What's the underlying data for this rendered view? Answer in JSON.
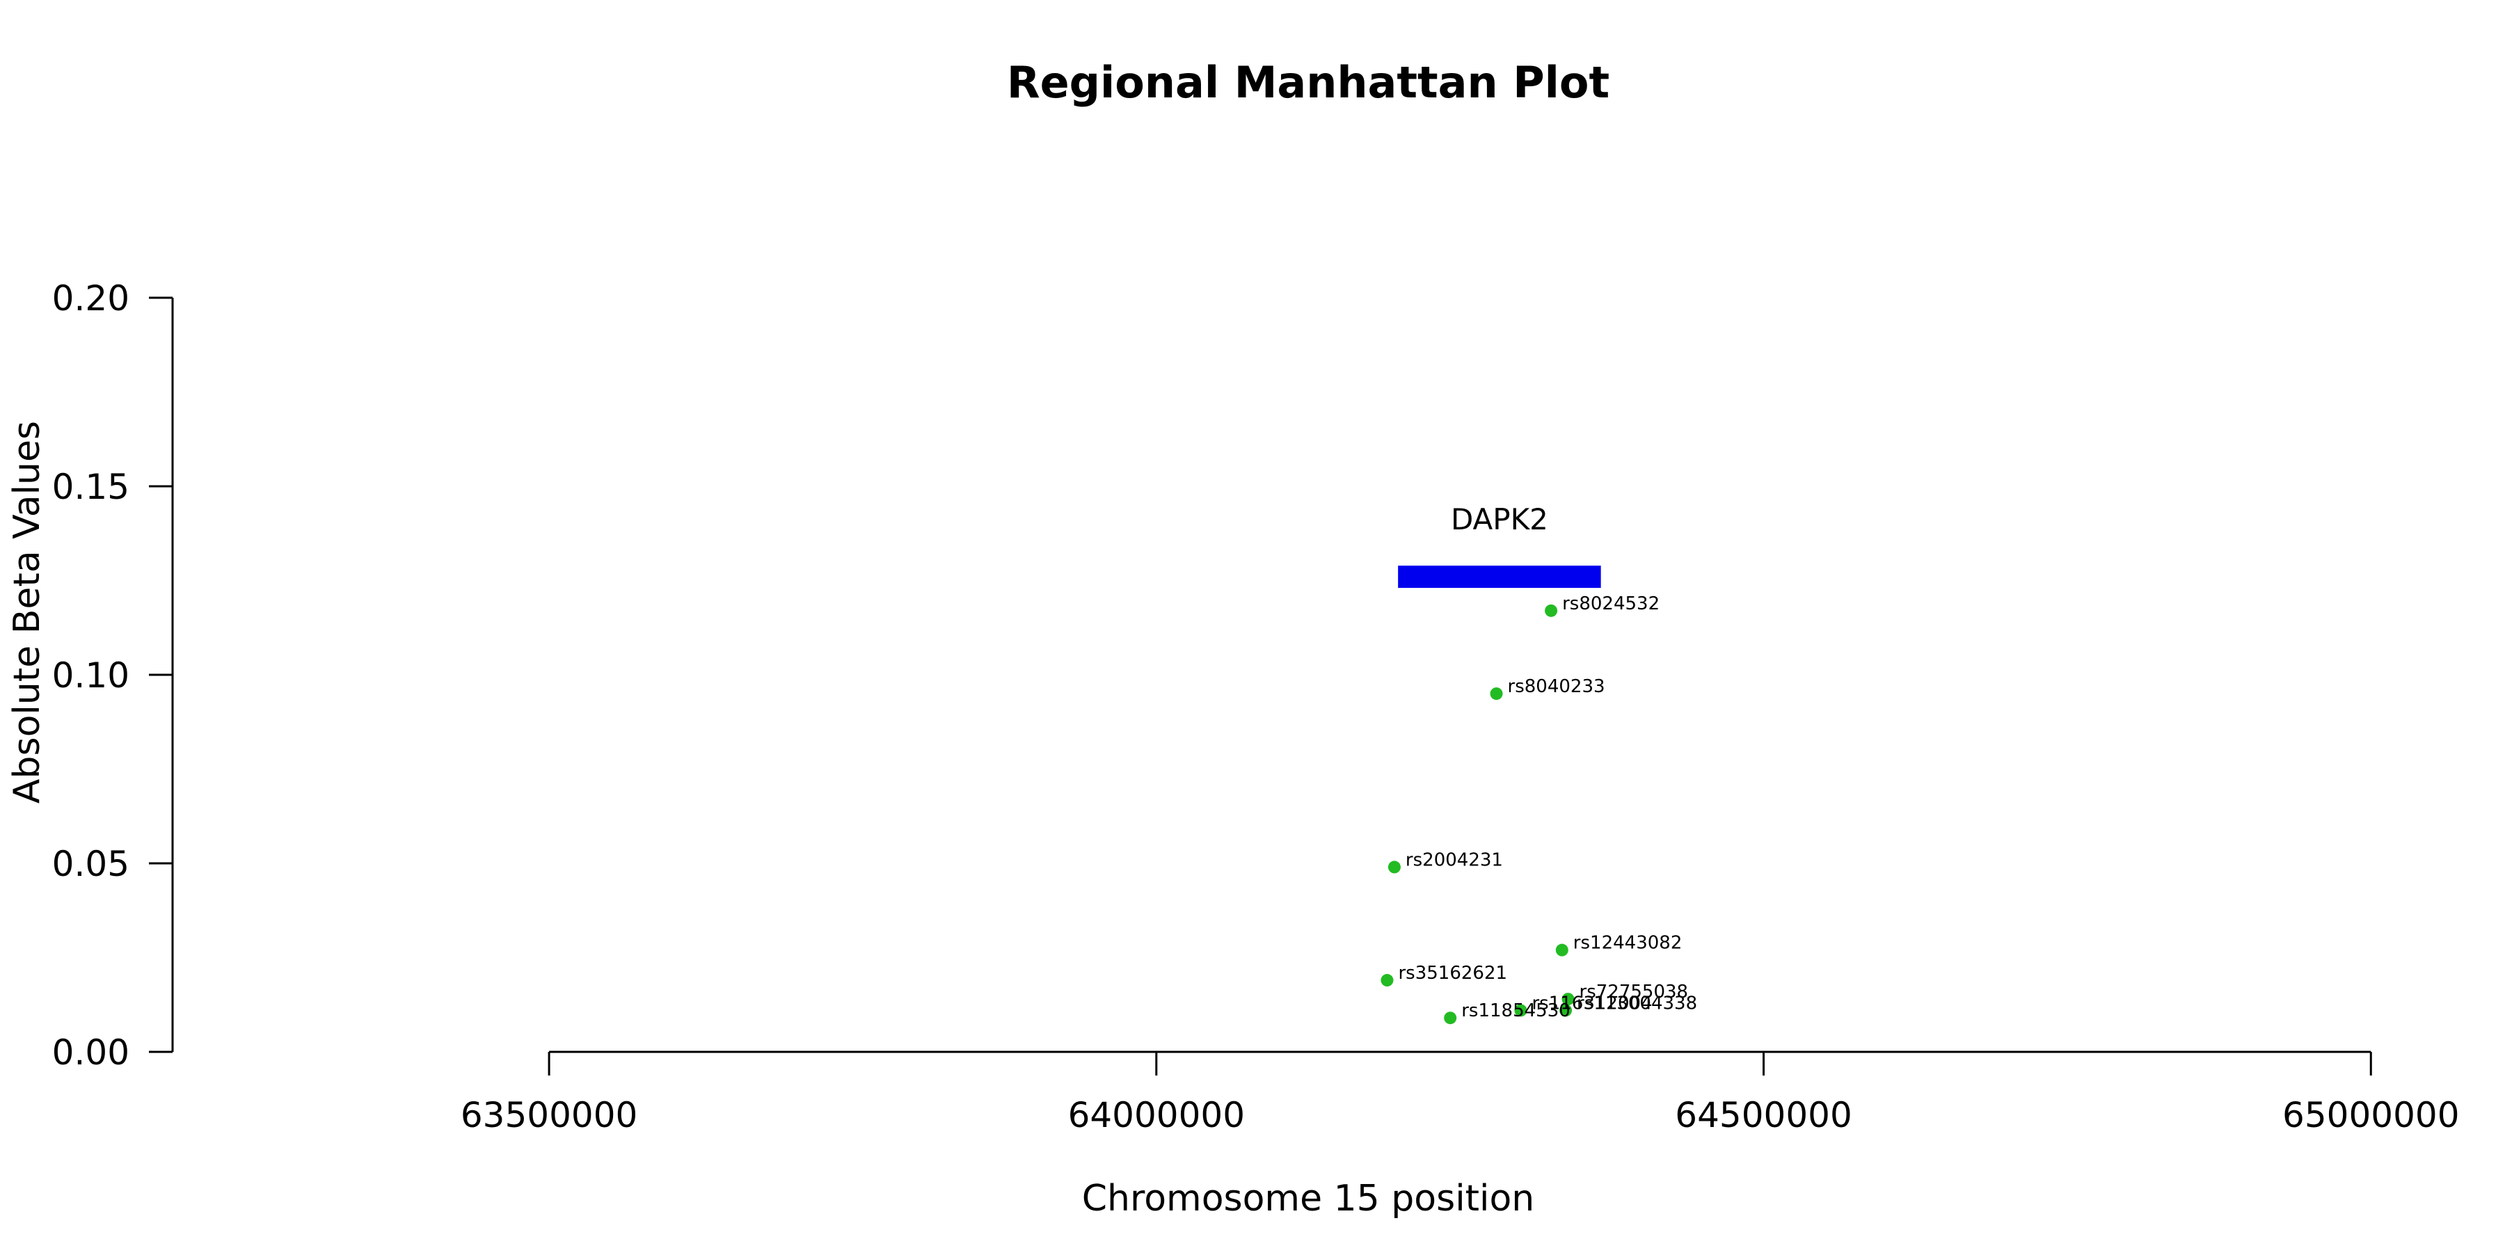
{
  "chart_data": {
    "type": "scatter",
    "title": "Regional Manhattan Plot",
    "xlabel": "Chromosome 15 position",
    "ylabel": "Absolute Beta Values",
    "xlim": [
      63190000,
      65060000
    ],
    "ylim": [
      0,
      0.2
    ],
    "x_ticks": [
      63500000,
      64000000,
      64500000,
      65000000
    ],
    "x_tick_labels": [
      "63500000",
      "64000000",
      "64500000",
      "65000000"
    ],
    "y_ticks": [
      0,
      0.05,
      0.1,
      0.15,
      0.2
    ],
    "y_tick_labels": [
      "0.00",
      "0.05",
      "0.10",
      "0.15",
      "0.20"
    ],
    "grid": false,
    "point_color": "#22bb22",
    "points": [
      {
        "label": "rs8024532",
        "x": 64325000,
        "y": 0.117
      },
      {
        "label": "rs8040233",
        "x": 64280000,
        "y": 0.095
      },
      {
        "label": "rs2004231",
        "x": 64196000,
        "y": 0.049
      },
      {
        "label": "rs12443082",
        "x": 64334000,
        "y": 0.027
      },
      {
        "label": "rs35162621",
        "x": 64190000,
        "y": 0.019
      },
      {
        "label": "rs72755038",
        "x": 64339000,
        "y": 0.014
      },
      {
        "label": "rs113004338",
        "x": 64337000,
        "y": 0.011
      },
      {
        "label": "rs116312004",
        "x": 64300000,
        "y": 0.011
      },
      {
        "label": "rs11854530",
        "x": 64242000,
        "y": 0.009
      }
    ],
    "genes": [
      {
        "name": "DAPK2",
        "start": 64199000,
        "end": 64366000,
        "y": 0.126,
        "color": "#0000ee"
      }
    ]
  }
}
